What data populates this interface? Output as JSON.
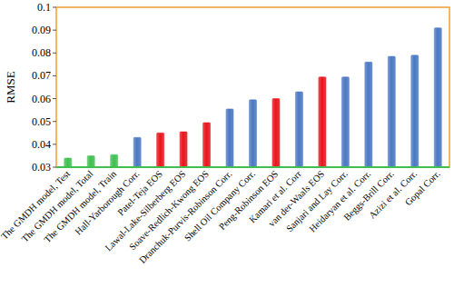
{
  "chart_data": {
    "type": "bar",
    "y_label": "RMSE",
    "categories": [
      "The GMDH model, Test",
      "The GMDH model, Total",
      "The GMDH model, Train",
      "Hall-Yarborough Corr.",
      "Patel-Teja EOS",
      "Lawal-Lake-Silberberg EOS",
      "Soave-Redlich-Kwong EOS",
      "Dranchuk-Purvis-Robinson Corr.",
      "Shell Oil Company Corr.",
      "Peng-Robinson EOS",
      "Kamari et al. Corr",
      "van der-Waals EOS",
      "Sanjari and Lay Corr.",
      "Heidaryan et al. Corr.",
      "Beggs-Brill Corr.",
      "Azizi et al. Corr.",
      "Gopal Corr."
    ],
    "values": [
      0.034,
      0.035,
      0.0355,
      0.043,
      0.045,
      0.0455,
      0.0495,
      0.0555,
      0.0595,
      0.06,
      0.063,
      0.0695,
      0.0695,
      0.076,
      0.0785,
      0.079,
      0.091
    ],
    "colors": [
      "#3fbf4f",
      "#3fbf4f",
      "#3fbf4f",
      "#4a78c2",
      "#e8141b",
      "#e8141b",
      "#e8141b",
      "#4a78c2",
      "#4a78c2",
      "#e8141b",
      "#4a78c2",
      "#e8141b",
      "#4a78c2",
      "#4a78c2",
      "#4a78c2",
      "#4a78c2",
      "#4a78c2"
    ],
    "ylim": [
      0.03,
      0.1
    ],
    "yticks": [
      0.03,
      0.04,
      0.05,
      0.06,
      0.07,
      0.08,
      0.09,
      0.1
    ],
    "grid": false
  }
}
